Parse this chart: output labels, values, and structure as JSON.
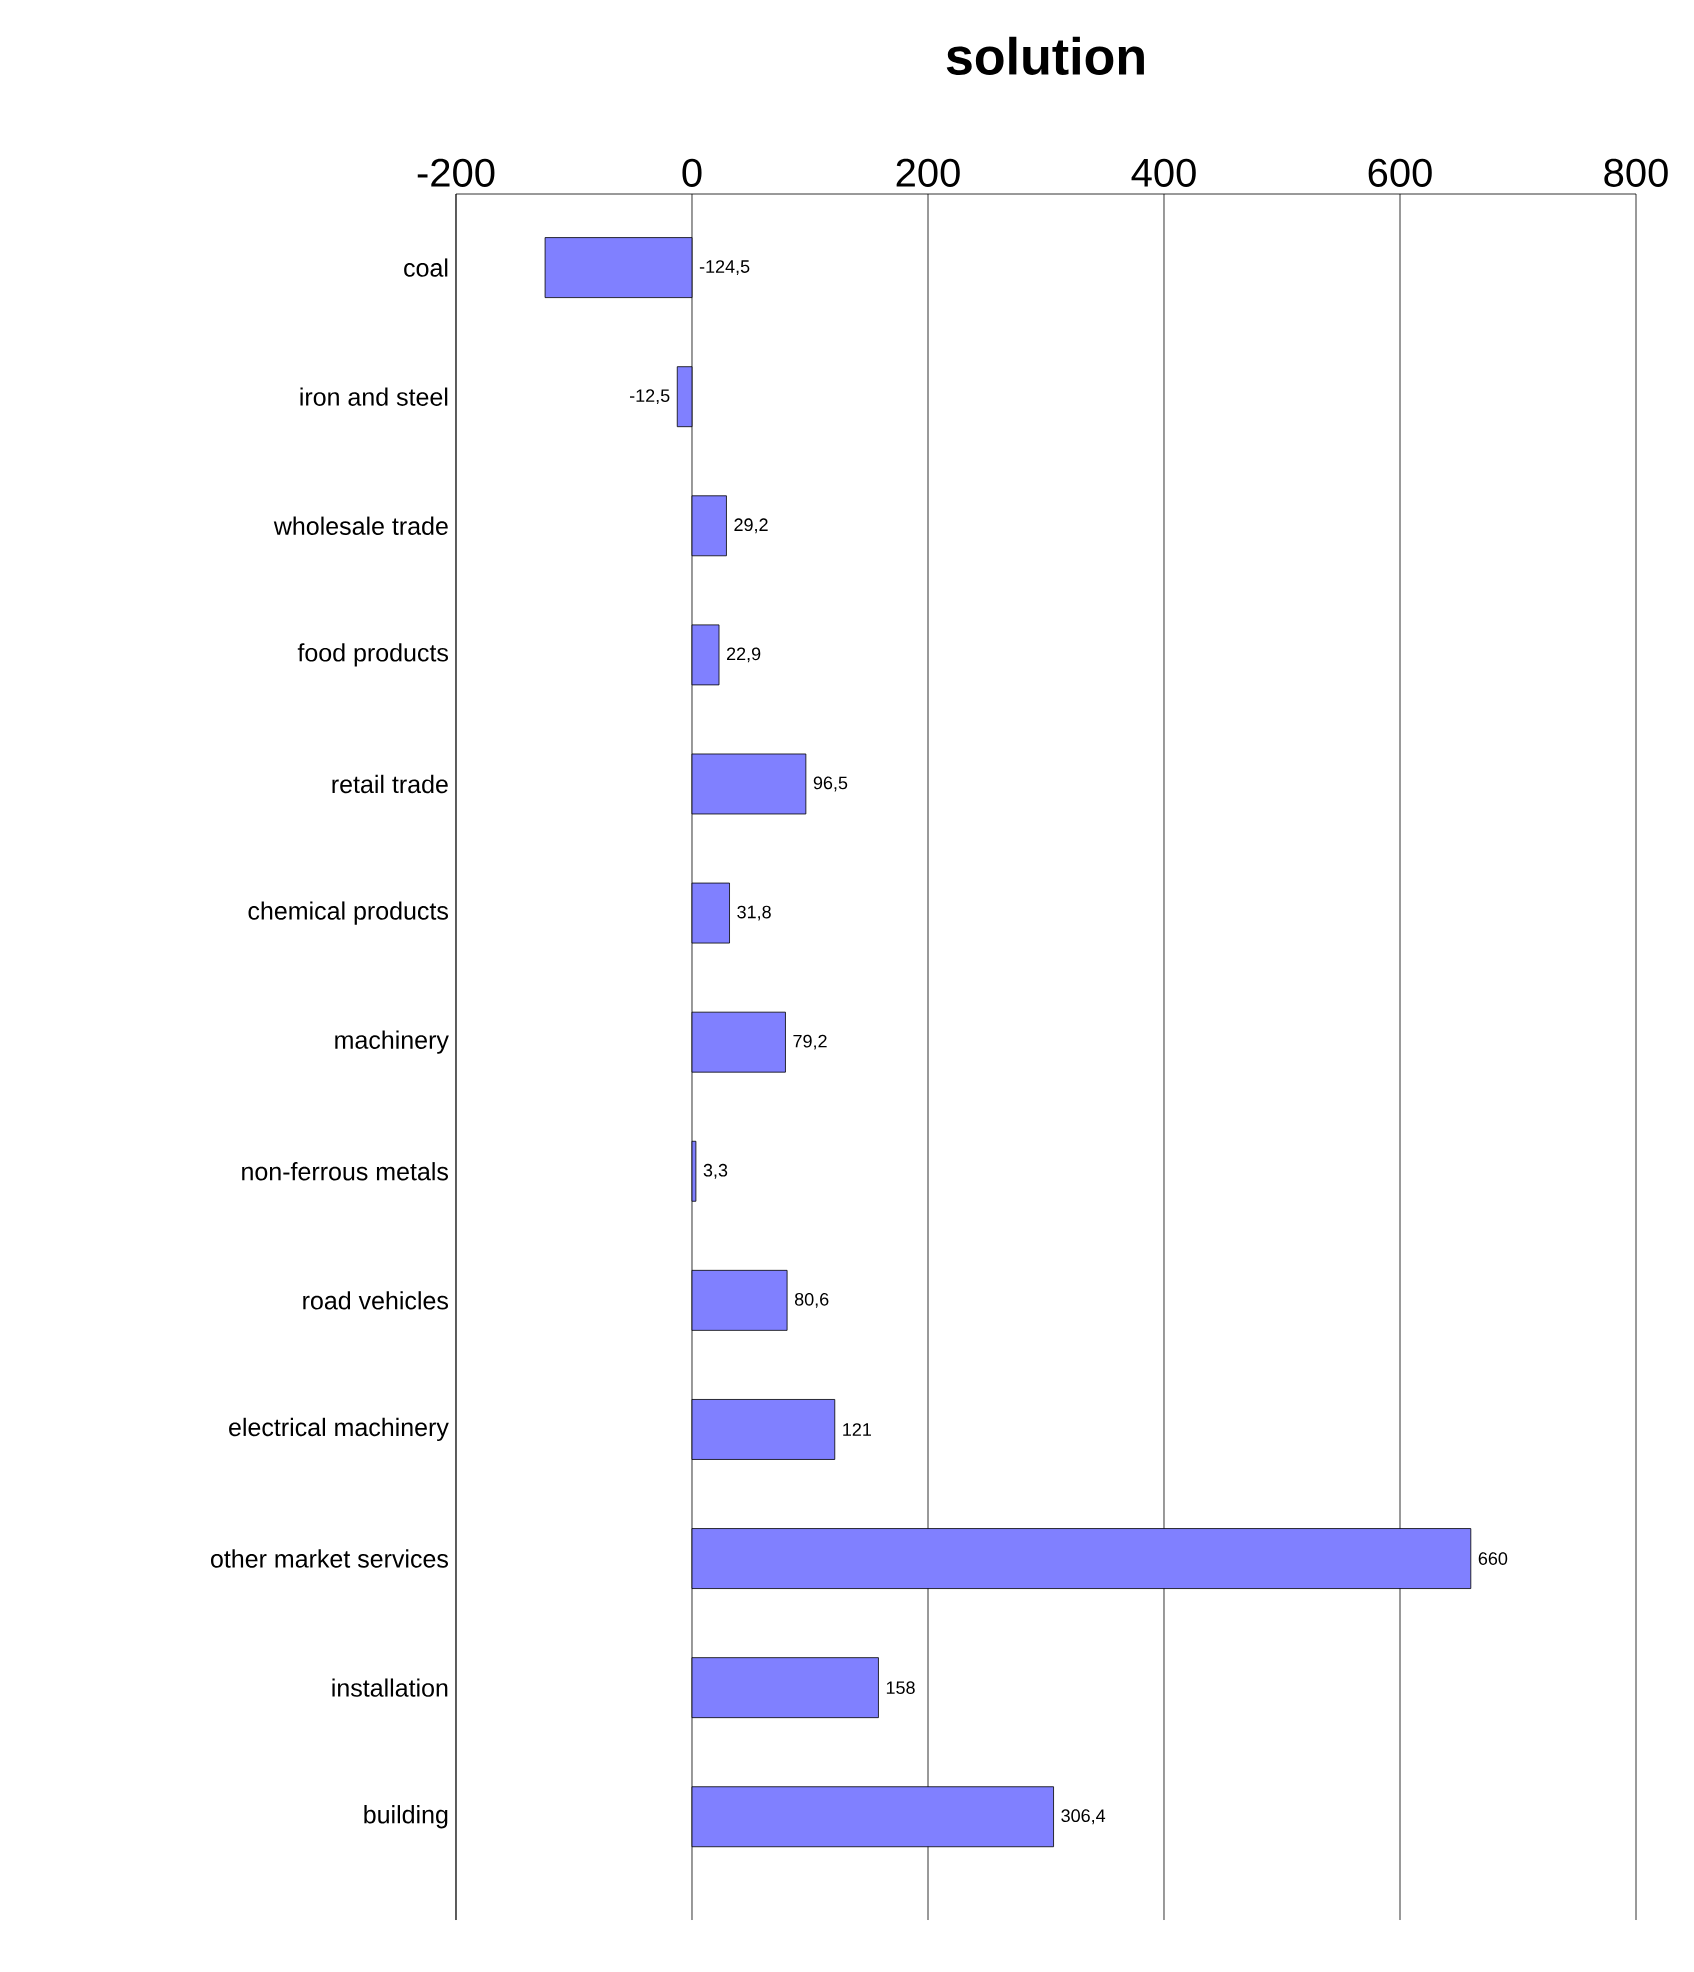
{
  "chart_data": {
    "type": "bar",
    "orientation": "horizontal",
    "title": "solution",
    "categories": [
      "coal",
      "iron and steel",
      "wholesale trade",
      "food products",
      "retail trade",
      "chemical products",
      "machinery",
      "non-ferrous metals",
      "road vehicles",
      "electrical machinery",
      "other market services",
      "installation",
      "building"
    ],
    "values": [
      -124.5,
      -12.5,
      29.2,
      22.9,
      96.5,
      31.8,
      79.2,
      3.3,
      80.6,
      121,
      660,
      158,
      306.4
    ],
    "value_labels": [
      "-124,5",
      "-12,5",
      "29,2",
      "22,9",
      "96,5",
      "31,8",
      "79,2",
      "3,3",
      "80,6",
      "121",
      "660",
      "158",
      "306,4"
    ],
    "color": "#8080ff",
    "xlim": [
      -200,
      800
    ],
    "xticks": [
      -200,
      0,
      200,
      400,
      600,
      800
    ],
    "grid": "x"
  }
}
